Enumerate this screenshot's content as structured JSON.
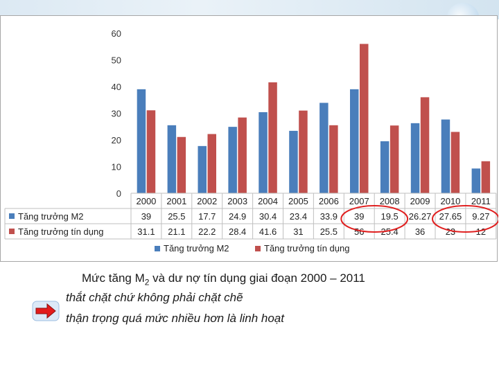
{
  "chart_data": {
    "type": "bar",
    "categories": [
      "2000",
      "2001",
      "2002",
      "2003",
      "2004",
      "2005",
      "2006",
      "2007",
      "2008",
      "2009",
      "2010",
      "2011"
    ],
    "series": [
      {
        "name": "Tăng trưởng M2",
        "color": "#4a7ebb",
        "values": [
          39,
          25.5,
          17.7,
          24.9,
          30.4,
          23.4,
          33.9,
          39,
          19.5,
          26.27,
          27.65,
          9.27
        ],
        "labels": [
          "39",
          "25.5",
          "17.7",
          "24.9",
          "30.4",
          "23.4",
          "33.9",
          "39",
          "19.5",
          "26.27",
          "27.65",
          "9.27"
        ]
      },
      {
        "name": "Tăng trưởng tín dụng",
        "color": "#c0504d",
        "values": [
          31.1,
          21.1,
          22.2,
          28.4,
          41.6,
          31,
          25.5,
          56,
          25.4,
          36,
          23,
          12
        ],
        "labels": [
          "31.1",
          "21.1",
          "22.2",
          "28.4",
          "41.6",
          "31",
          "25.5",
          "56",
          "25.4",
          "36",
          "23",
          "12"
        ]
      }
    ],
    "ylim": [
      0,
      60
    ],
    "yticks": [
      "0",
      "10",
      "20",
      "30",
      "40",
      "50",
      "60"
    ],
    "grid": false,
    "legend": "bottom",
    "highlighted_categories": [
      "2007",
      "2008",
      "2010",
      "2011"
    ],
    "highlight_color": "#e02020"
  },
  "caption": {
    "prefix": "Mức tăng M",
    "sub": "2",
    "suffix": " và dư nợ tín dụng giai đoạn 2000 – 2011"
  },
  "notes": [
    "thắt chặt chứ không phải chặt chẽ",
    "thận trọng quá mức nhiều hơn là linh hoạt"
  ]
}
